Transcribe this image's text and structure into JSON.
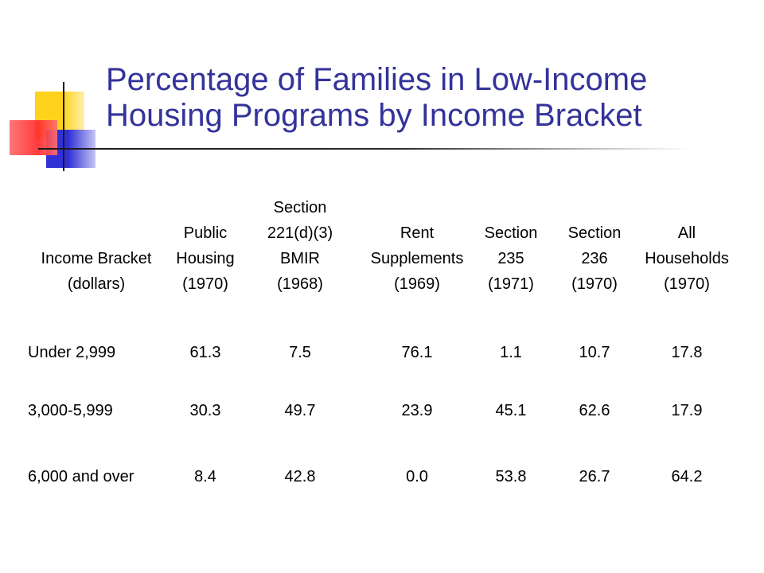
{
  "slide": {
    "title_lines": [
      "Percentage of Families in Low-Income",
      "Housing Programs by Income Bracket"
    ]
  },
  "table": {
    "headers": [
      [
        "Income Bracket",
        "(dollars)"
      ],
      [
        "Public",
        "Housing",
        "(1970)"
      ],
      [
        "Section",
        "221(d)(3)",
        "BMIR",
        "(1968)"
      ],
      [
        "Rent",
        "Supplements",
        "(1969)"
      ],
      [
        "Section",
        "235",
        "(1971)"
      ],
      [
        "Section",
        "236",
        "(1970)"
      ],
      [
        "All",
        "Households",
        "(1970)"
      ]
    ],
    "rows": [
      [
        "Under 2,999",
        "61.3",
        "7.5",
        "76.1",
        "1.1",
        "10.7",
        "17.8"
      ],
      [
        "3,000-5,999",
        "30.3",
        "49.7",
        "23.9",
        "45.1",
        "62.6",
        "17.9"
      ],
      [
        "6,000 and over",
        "8.4",
        "42.8",
        "0.0",
        "53.8",
        "26.7",
        "64.2"
      ]
    ]
  },
  "colors": {
    "title": "#33339a",
    "accent_yellow": "#ffd21c",
    "accent_blue": "#3131d6",
    "accent_red": "#ff2a2a"
  }
}
